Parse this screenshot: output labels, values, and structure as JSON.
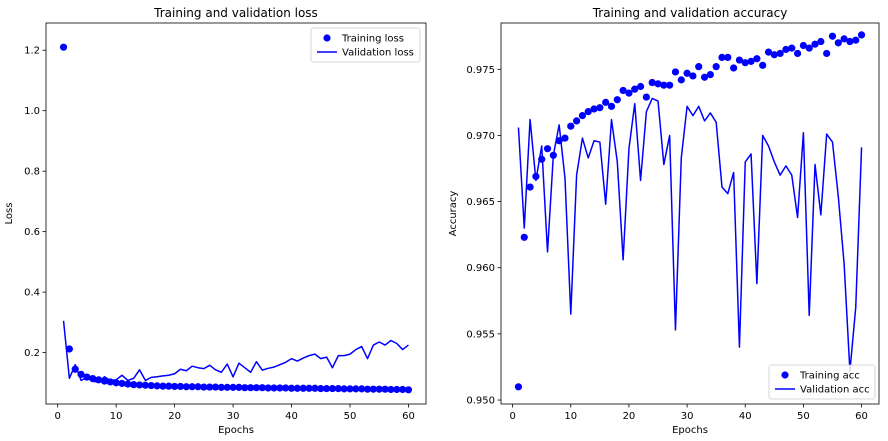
{
  "chart_data": [
    {
      "type": "line",
      "title": "Training and validation loss",
      "xlabel": "Epochs",
      "ylabel": "Loss",
      "xlim": [
        -2,
        63
      ],
      "ylim": [
        0.03,
        1.29
      ],
      "xticks": [
        0,
        10,
        20,
        30,
        40,
        50,
        60
      ],
      "yticks": [
        0.2,
        0.4,
        0.6,
        0.8,
        1.0,
        1.2
      ],
      "ytick_labels": [
        "0.2",
        "0.4",
        "0.6",
        "0.8",
        "1.0",
        "1.2"
      ],
      "legend_position": "top-right",
      "grid": false,
      "x": [
        1,
        2,
        3,
        4,
        5,
        6,
        7,
        8,
        9,
        10,
        11,
        12,
        13,
        14,
        15,
        16,
        17,
        18,
        19,
        20,
        21,
        22,
        23,
        24,
        25,
        26,
        27,
        28,
        29,
        30,
        31,
        32,
        33,
        34,
        35,
        36,
        37,
        38,
        39,
        40,
        41,
        42,
        43,
        44,
        45,
        46,
        47,
        48,
        49,
        50,
        51,
        52,
        53,
        54,
        55,
        56,
        57,
        58,
        59,
        60
      ],
      "series": [
        {
          "name": "Training loss",
          "style": "markers",
          "color": "#0000ff",
          "values": [
            1.21,
            0.212,
            0.145,
            0.128,
            0.119,
            0.114,
            0.11,
            0.106,
            0.103,
            0.1,
            0.098,
            0.096,
            0.094,
            0.093,
            0.092,
            0.091,
            0.09,
            0.089,
            0.089,
            0.088,
            0.088,
            0.087,
            0.087,
            0.087,
            0.086,
            0.086,
            0.086,
            0.085,
            0.085,
            0.085,
            0.085,
            0.084,
            0.084,
            0.084,
            0.084,
            0.083,
            0.083,
            0.083,
            0.083,
            0.082,
            0.082,
            0.082,
            0.082,
            0.082,
            0.081,
            0.081,
            0.081,
            0.081,
            0.08,
            0.08,
            0.08,
            0.08,
            0.079,
            0.079,
            0.079,
            0.079,
            0.078,
            0.078,
            0.078,
            0.077
          ]
        },
        {
          "name": "Validation loss",
          "style": "line",
          "color": "#0000ff",
          "values": [
            0.305,
            0.115,
            0.16,
            0.108,
            0.118,
            0.105,
            0.102,
            0.12,
            0.108,
            0.11,
            0.125,
            0.108,
            0.115,
            0.143,
            0.108,
            0.118,
            0.12,
            0.123,
            0.125,
            0.13,
            0.145,
            0.14,
            0.155,
            0.15,
            0.147,
            0.158,
            0.143,
            0.135,
            0.162,
            0.12,
            0.165,
            0.15,
            0.135,
            0.17,
            0.142,
            0.148,
            0.152,
            0.16,
            0.168,
            0.18,
            0.172,
            0.182,
            0.19,
            0.195,
            0.18,
            0.185,
            0.15,
            0.19,
            0.19,
            0.195,
            0.21,
            0.22,
            0.18,
            0.225,
            0.235,
            0.225,
            0.24,
            0.23,
            0.21,
            0.225
          ]
        }
      ]
    },
    {
      "type": "line",
      "title": "Training and validation accuracy",
      "xlabel": "Epochs",
      "ylabel": "Accuracy",
      "xlim": [
        -2,
        63
      ],
      "ylim": [
        0.9497,
        0.9785
      ],
      "xticks": [
        0,
        10,
        20,
        30,
        40,
        50,
        60
      ],
      "yticks": [
        0.95,
        0.955,
        0.96,
        0.965,
        0.97,
        0.975
      ],
      "ytick_labels": [
        "0.950",
        "0.955",
        "0.960",
        "0.965",
        "0.970",
        "0.975"
      ],
      "legend_position": "bottom-right",
      "grid": false,
      "x": [
        1,
        2,
        3,
        4,
        5,
        6,
        7,
        8,
        9,
        10,
        11,
        12,
        13,
        14,
        15,
        16,
        17,
        18,
        19,
        20,
        21,
        22,
        23,
        24,
        25,
        26,
        27,
        28,
        29,
        30,
        31,
        32,
        33,
        34,
        35,
        36,
        37,
        38,
        39,
        40,
        41,
        42,
        43,
        44,
        45,
        46,
        47,
        48,
        49,
        50,
        51,
        52,
        53,
        54,
        55,
        56,
        57,
        58,
        59,
        60
      ],
      "series": [
        {
          "name": "Training acc",
          "style": "markers",
          "color": "#0000ff",
          "values": [
            0.951,
            0.9623,
            0.9661,
            0.9669,
            0.9682,
            0.969,
            0.9685,
            0.9696,
            0.9698,
            0.9707,
            0.9711,
            0.9715,
            0.9718,
            0.972,
            0.9721,
            0.9725,
            0.9722,
            0.9727,
            0.9734,
            0.9732,
            0.9735,
            0.9737,
            0.9729,
            0.974,
            0.9739,
            0.9738,
            0.9738,
            0.9748,
            0.9742,
            0.9747,
            0.9745,
            0.9752,
            0.9744,
            0.9746,
            0.9752,
            0.9759,
            0.9759,
            0.9751,
            0.9757,
            0.9755,
            0.9756,
            0.9758,
            0.9753,
            0.9763,
            0.9761,
            0.9762,
            0.9765,
            0.9766,
            0.9762,
            0.9768,
            0.9766,
            0.9769,
            0.9771,
            0.9762,
            0.9775,
            0.977,
            0.9773,
            0.9771,
            0.9772,
            0.9776
          ]
        },
        {
          "name": "Validation acc",
          "style": "line",
          "color": "#0000ff",
          "values": [
            0.9706,
            0.963,
            0.9712,
            0.9666,
            0.9692,
            0.9612,
            0.9685,
            0.9708,
            0.9668,
            0.9565,
            0.967,
            0.9698,
            0.9683,
            0.9696,
            0.9695,
            0.9648,
            0.9712,
            0.968,
            0.9606,
            0.969,
            0.9724,
            0.9666,
            0.9718,
            0.9728,
            0.9726,
            0.9678,
            0.97,
            0.9553,
            0.9683,
            0.9722,
            0.9715,
            0.9722,
            0.9711,
            0.9717,
            0.971,
            0.9661,
            0.9656,
            0.9672,
            0.954,
            0.968,
            0.9686,
            0.9588,
            0.97,
            0.9692,
            0.968,
            0.967,
            0.9677,
            0.967,
            0.9638,
            0.9702,
            0.9564,
            0.9678,
            0.964,
            0.9701,
            0.9695,
            0.9654,
            0.9603,
            0.9522,
            0.957,
            0.9691
          ]
        }
      ]
    }
  ]
}
